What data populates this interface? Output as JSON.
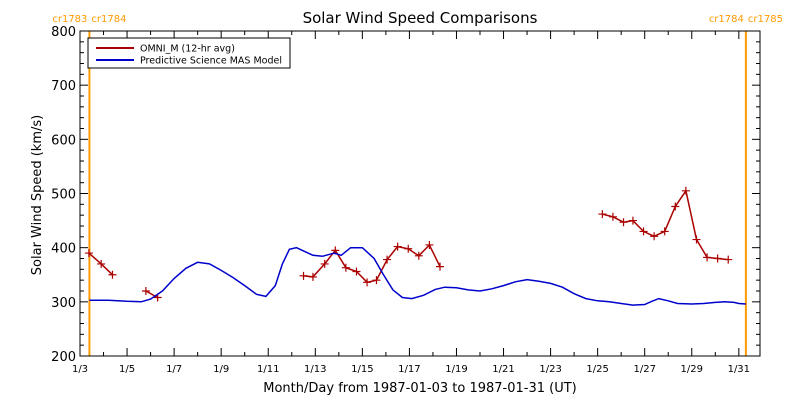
{
  "chart_data": {
    "type": "line",
    "title": "Solar Wind Speed Comparisons",
    "xlabel": "Month/Day from 1987-01-03 to 1987-01-31 (UT)",
    "ylabel": "Solar Wind Speed (km/s)",
    "x_unit": "day of January 1987",
    "xlim": [
      3,
      31.9
    ],
    "ylim": [
      200,
      800
    ],
    "yticks": [
      200,
      300,
      400,
      500,
      600,
      700,
      800
    ],
    "xticks": [
      {
        "x": 3,
        "label": "1/3"
      },
      {
        "x": 5,
        "label": "1/5"
      },
      {
        "x": 7,
        "label": "1/7"
      },
      {
        "x": 9,
        "label": "1/9"
      },
      {
        "x": 11,
        "label": "1/11"
      },
      {
        "x": 13,
        "label": "1/13"
      },
      {
        "x": 15,
        "label": "1/15"
      },
      {
        "x": 17,
        "label": "1/17"
      },
      {
        "x": 19,
        "label": "1/19"
      },
      {
        "x": 21,
        "label": "1/21"
      },
      {
        "x": 23,
        "label": "1/23"
      },
      {
        "x": 25,
        "label": "1/25"
      },
      {
        "x": 27,
        "label": "1/27"
      },
      {
        "x": 29,
        "label": "1/29"
      },
      {
        "x": 31,
        "label": "1/31"
      }
    ],
    "legend_position": "top-left",
    "markers": [
      {
        "x": 3.4,
        "label_left": "cr1783",
        "label_right": "cr1784",
        "color": "#ff9900"
      },
      {
        "x": 31.3,
        "label_left": "cr1784",
        "label_right": "cr1785",
        "color": "#ff9900"
      }
    ],
    "series": [
      {
        "name": "OMNI_M (12-hr avg)",
        "color": "#aa0000",
        "marker": "plus",
        "segments": [
          [
            [
              3.38,
              390
            ],
            [
              3.9,
              370
            ],
            [
              4.38,
              350
            ]
          ],
          [
            [
              5.8,
              320
            ],
            [
              6.3,
              308
            ]
          ],
          [
            [
              12.5,
              348
            ],
            [
              12.9,
              346
            ],
            [
              13.4,
              370
            ],
            [
              13.85,
              395
            ],
            [
              14.3,
              363
            ],
            [
              14.75,
              356
            ],
            [
              15.2,
              336
            ],
            [
              15.6,
              340
            ],
            [
              16.05,
              378
            ],
            [
              16.5,
              402
            ],
            [
              16.95,
              398
            ],
            [
              17.4,
              385
            ],
            [
              17.85,
              405
            ],
            [
              18.3,
              365
            ]
          ],
          [
            [
              25.2,
              462
            ],
            [
              25.65,
              457
            ],
            [
              26.1,
              447
            ],
            [
              26.5,
              450
            ],
            [
              26.95,
              430
            ],
            [
              27.4,
              421
            ],
            [
              27.85,
              430
            ],
            [
              28.3,
              476
            ],
            [
              28.75,
              505
            ],
            [
              29.2,
              415
            ],
            [
              29.65,
              382
            ],
            [
              30.1,
              380
            ],
            [
              30.55,
              378
            ]
          ]
        ]
      },
      {
        "name": "Predictive Science MAS Model",
        "color": "#0000cc",
        "marker": "none",
        "segments": [
          [
            [
              3.4,
              303
            ],
            [
              4.2,
              303
            ],
            [
              5.0,
              301
            ],
            [
              5.6,
              300
            ],
            [
              6.0,
              305
            ],
            [
              6.5,
              320
            ],
            [
              7.0,
              343
            ],
            [
              7.5,
              362
            ],
            [
              8.0,
              373
            ],
            [
              8.5,
              370
            ],
            [
              9.0,
              358
            ],
            [
              9.5,
              345
            ],
            [
              10.0,
              330
            ],
            [
              10.5,
              314
            ],
            [
              10.9,
              310
            ],
            [
              11.3,
              330
            ],
            [
              11.6,
              370
            ],
            [
              11.9,
              397
            ],
            [
              12.2,
              400
            ],
            [
              12.5,
              394
            ],
            [
              12.9,
              386
            ],
            [
              13.3,
              384
            ],
            [
              13.8,
              390
            ],
            [
              14.1,
              386
            ],
            [
              14.5,
              400
            ],
            [
              15.0,
              400
            ],
            [
              15.5,
              380
            ],
            [
              15.9,
              350
            ],
            [
              16.3,
              322
            ],
            [
              16.7,
              308
            ],
            [
              17.1,
              306
            ],
            [
              17.6,
              312
            ],
            [
              18.1,
              323
            ],
            [
              18.5,
              327
            ],
            [
              19.0,
              326
            ],
            [
              19.5,
              322
            ],
            [
              20.0,
              320
            ],
            [
              20.5,
              324
            ],
            [
              21.0,
              330
            ],
            [
              21.5,
              337
            ],
            [
              22.0,
              341
            ],
            [
              22.5,
              338
            ],
            [
              23.0,
              334
            ],
            [
              23.5,
              327
            ],
            [
              24.0,
              315
            ],
            [
              24.5,
              306
            ],
            [
              25.0,
              302
            ],
            [
              25.5,
              300
            ],
            [
              26.0,
              297
            ],
            [
              26.5,
              294
            ],
            [
              27.0,
              295
            ],
            [
              27.3,
              301
            ],
            [
              27.6,
              306
            ],
            [
              28.0,
              302
            ],
            [
              28.4,
              297
            ],
            [
              29.0,
              296
            ],
            [
              29.5,
              297
            ],
            [
              30.0,
              299
            ],
            [
              30.4,
              300
            ],
            [
              30.8,
              299
            ],
            [
              31.0,
              297
            ],
            [
              31.3,
              296
            ]
          ]
        ]
      }
    ]
  }
}
